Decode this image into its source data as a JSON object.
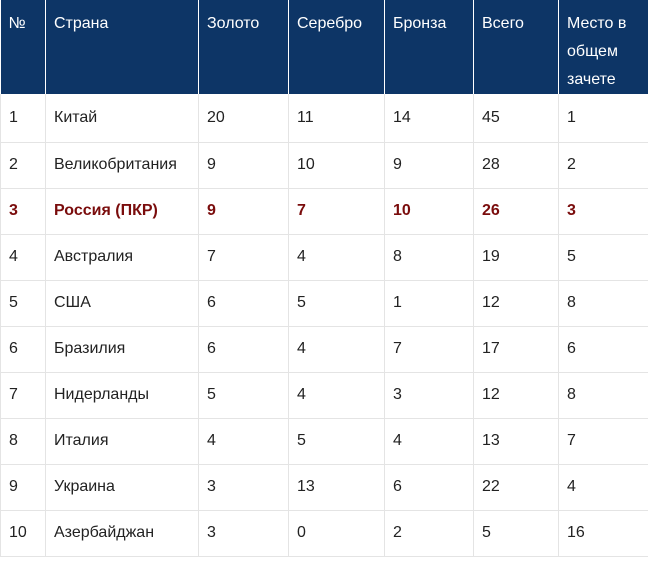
{
  "table": {
    "headers": [
      "№",
      "Страна",
      "Золото",
      "Серебро",
      "Бронза",
      "Всего",
      "Место в общем зачете"
    ],
    "highlight_color": "#7a0c0c",
    "header_bg": "#0d3566",
    "rows": [
      {
        "num": "1",
        "country": "Китай",
        "gold": "20",
        "silver": "11",
        "bronze": "14",
        "total": "45",
        "place": "1"
      },
      {
        "num": "2",
        "country": "Великобритания",
        "gold": "9",
        "silver": "10",
        "bronze": "9",
        "total": "28",
        "place": "2"
      },
      {
        "num": "3",
        "country": "Россия (ПКР)",
        "gold": "9",
        "silver": "7",
        "bronze": "10",
        "total": "26",
        "place": "3",
        "highlighted": true
      },
      {
        "num": "4",
        "country": "Австралия",
        "gold": "7",
        "silver": "4",
        "bronze": "8",
        "total": "19",
        "place": "5"
      },
      {
        "num": "5",
        "country": "США",
        "gold": "6",
        "silver": "5",
        "bronze": "1",
        "total": "12",
        "place": "8"
      },
      {
        "num": "6",
        "country": "Бразилия",
        "gold": "6",
        "silver": "4",
        "bronze": "7",
        "total": "17",
        "place": "6"
      },
      {
        "num": "7",
        "country": "Нидерланды",
        "gold": "5",
        "silver": "4",
        "bronze": "3",
        "total": "12",
        "place": "8"
      },
      {
        "num": "8",
        "country": "Италия",
        "gold": "4",
        "silver": "5",
        "bronze": "4",
        "total": "13",
        "place": "7"
      },
      {
        "num": "9",
        "country": "Украина",
        "gold": "3",
        "silver": "13",
        "bronze": "6",
        "total": "22",
        "place": "4"
      },
      {
        "num": "10",
        "country": "Азербайджан",
        "gold": "3",
        "silver": "0",
        "bronze": "2",
        "total": "5",
        "place": "16"
      }
    ]
  }
}
